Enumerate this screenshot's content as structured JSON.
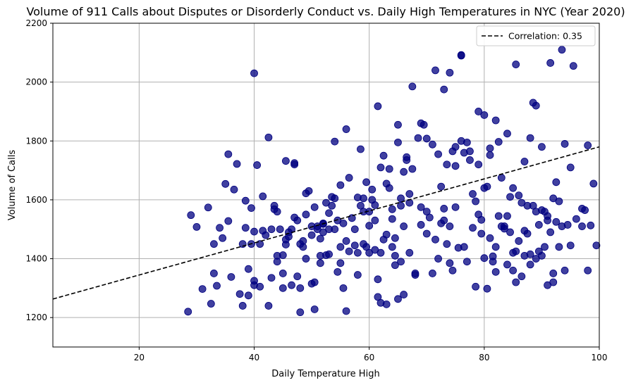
{
  "chart_data": {
    "type": "scatter",
    "title": "Volume of 911 Calls about Disputes or Disorderly Conduct vs. Daily High Temperatures in NYC (Year 2020)",
    "xlabel": "Daily Temperature High",
    "ylabel": "Volume of Calls",
    "xlim": [
      5,
      100
    ],
    "ylim": [
      1100,
      2200
    ],
    "xticks": [
      20,
      40,
      60,
      80,
      100
    ],
    "yticks": [
      1200,
      1400,
      1600,
      1800,
      2000,
      2200
    ],
    "xtick_labels": [
      "20",
      "40",
      "60",
      "80",
      "100"
    ],
    "ytick_labels": [
      "1200",
      "1400",
      "1600",
      "1800",
      "2000",
      "2200"
    ],
    "grid": true,
    "legend_position": "top-right",
    "point_color": "#000080",
    "trend": {
      "label": "Correlation: 0.35",
      "x": [
        5,
        100
      ],
      "y": [
        1263,
        1780
      ],
      "color": "#000000",
      "style": "dashed"
    },
    "points": [
      [
        28.5,
        1220
      ],
      [
        29,
        1548
      ],
      [
        30,
        1508
      ],
      [
        31,
        1297
      ],
      [
        32,
        1574
      ],
      [
        32.5,
        1247
      ],
      [
        33,
        1450
      ],
      [
        33,
        1350
      ],
      [
        33.5,
        1308
      ],
      [
        34,
        1505
      ],
      [
        34.5,
        1470
      ],
      [
        35,
        1654
      ],
      [
        35.5,
        1755
      ],
      [
        35.5,
        1528
      ],
      [
        36,
        1338
      ],
      [
        36.5,
        1635
      ],
      [
        37,
        1722
      ],
      [
        37.5,
        1280
      ],
      [
        38,
        1240
      ],
      [
        38,
        1450
      ],
      [
        38.5,
        1597
      ],
      [
        38.5,
        1505
      ],
      [
        39,
        1275
      ],
      [
        39,
        1365
      ],
      [
        39.5,
        1572
      ],
      [
        39.5,
        1450
      ],
      [
        40,
        1310
      ],
      [
        40,
        1492
      ],
      [
        40,
        1325
      ],
      [
        40.5,
        1718
      ],
      [
        40,
        2030
      ],
      [
        41,
        1450
      ],
      [
        41,
        1305
      ],
      [
        41.5,
        1612
      ],
      [
        41.5,
        1495
      ],
      [
        42,
        1480
      ],
      [
        42.5,
        1240
      ],
      [
        42.5,
        1812
      ],
      [
        43,
        1500
      ],
      [
        43,
        1335
      ],
      [
        43.5,
        1568
      ],
      [
        43.5,
        1580
      ],
      [
        44,
        1560
      ],
      [
        44,
        1410
      ],
      [
        44,
        1390
      ],
      [
        44.5,
        1500
      ],
      [
        45,
        1350
      ],
      [
        45,
        1300
      ],
      [
        45,
        1412
      ],
      [
        45.5,
        1448
      ],
      [
        45.5,
        1465
      ],
      [
        45.5,
        1732
      ],
      [
        46,
        1490
      ],
      [
        46,
        1475
      ],
      [
        46.5,
        1310
      ],
      [
        46.5,
        1500
      ],
      [
        47,
        1540
      ],
      [
        47,
        1720
      ],
      [
        47,
        1725
      ],
      [
        47.5,
        1340
      ],
      [
        47.5,
        1530
      ],
      [
        48,
        1300
      ],
      [
        48,
        1450
      ],
      [
        48,
        1218
      ],
      [
        48.5,
        1440
      ],
      [
        48.5,
        1460
      ],
      [
        49,
        1400
      ],
      [
        49,
        1550
      ],
      [
        49,
        1622
      ],
      [
        49.5,
        1630
      ],
      [
        50,
        1315
      ],
      [
        50,
        1510
      ],
      [
        50,
        1480
      ],
      [
        50.5,
        1320
      ],
      [
        50.5,
        1228
      ],
      [
        50.5,
        1575
      ],
      [
        51,
        1500
      ],
      [
        51,
        1510
      ],
      [
        51.5,
        1385
      ],
      [
        51.5,
        1410
      ],
      [
        51.5,
        1468
      ],
      [
        52,
        1490
      ],
      [
        52,
        1520
      ],
      [
        52,
        1518
      ],
      [
        52.5,
        1590
      ],
      [
        52.5,
        1412
      ],
      [
        53,
        1500
      ],
      [
        53,
        1555
      ],
      [
        53,
        1415
      ],
      [
        53.5,
        1580
      ],
      [
        53.5,
        1610
      ],
      [
        54,
        1605
      ],
      [
        54,
        1500
      ],
      [
        54,
        1798
      ],
      [
        54.5,
        1355
      ],
      [
        54.5,
        1530
      ],
      [
        55,
        1650
      ],
      [
        55,
        1440
      ],
      [
        55,
        1385
      ],
      [
        55.5,
        1300
      ],
      [
        55.5,
        1520
      ],
      [
        56,
        1222
      ],
      [
        56,
        1840
      ],
      [
        56,
        1460
      ],
      [
        56.5,
        1675
      ],
      [
        56.5,
        1425
      ],
      [
        57,
        1538
      ],
      [
        57.5,
        1445
      ],
      [
        57.5,
        1500
      ],
      [
        58,
        1608
      ],
      [
        58,
        1420
      ],
      [
        58,
        1345
      ],
      [
        58.5,
        1772
      ],
      [
        58.5,
        1580
      ],
      [
        59,
        1605
      ],
      [
        59,
        1450
      ],
      [
        59,
        1560
      ],
      [
        59.5,
        1660
      ],
      [
        59.5,
        1440
      ],
      [
        60,
        1512
      ],
      [
        60,
        1560
      ],
      [
        60,
        1420
      ],
      [
        60.5,
        1600
      ],
      [
        60.5,
        1635
      ],
      [
        61,
        1582
      ],
      [
        61,
        1430
      ],
      [
        61,
        1530
      ],
      [
        61.5,
        1918
      ],
      [
        61.5,
        1330
      ],
      [
        61.5,
        1270
      ],
      [
        62,
        1250
      ],
      [
        62,
        1710
      ],
      [
        62,
        1420
      ],
      [
        62.5,
        1465
      ],
      [
        62.5,
        1750
      ],
      [
        63,
        1655
      ],
      [
        63,
        1482
      ],
      [
        63,
        1245
      ],
      [
        63.5,
        1705
      ],
      [
        63.5,
        1640
      ],
      [
        64,
        1535
      ],
      [
        64,
        1568
      ],
      [
        64,
        1440
      ],
      [
        64.5,
        1410
      ],
      [
        64.5,
        1378
      ],
      [
        64.5,
        1470
      ],
      [
        65,
        1263
      ],
      [
        65,
        1855
      ],
      [
        65,
        1795
      ],
      [
        65.5,
        1605
      ],
      [
        65.5,
        1580
      ],
      [
        65.5,
        1390
      ],
      [
        66,
        1695
      ],
      [
        66,
        1510
      ],
      [
        66,
        1278
      ],
      [
        66.5,
        1745
      ],
      [
        66.5,
        1735
      ],
      [
        67,
        1590
      ],
      [
        67,
        1620
      ],
      [
        67,
        1420
      ],
      [
        67.5,
        1985
      ],
      [
        67.5,
        1705
      ],
      [
        68,
        1350
      ],
      [
        68,
        1345
      ],
      [
        68.5,
        1810
      ],
      [
        69,
        1515
      ],
      [
        69,
        1860
      ],
      [
        69,
        1575
      ],
      [
        69.5,
        1855
      ],
      [
        70,
        1485
      ],
      [
        70,
        1560
      ],
      [
        70,
        1808
      ],
      [
        70.5,
        1540
      ],
      [
        71,
        1788
      ],
      [
        71,
        1350
      ],
      [
        71.5,
        1465
      ],
      [
        71.5,
        2040
      ],
      [
        72,
        1400
      ],
      [
        72,
        1755
      ],
      [
        72.5,
        1520
      ],
      [
        72.5,
        1645
      ],
      [
        73,
        1530
      ],
      [
        73,
        1975
      ],
      [
        73,
        1570
      ],
      [
        73.5,
        1450
      ],
      [
        73.5,
        1720
      ],
      [
        74,
        1510
      ],
      [
        74,
        1385
      ],
      [
        74,
        2032
      ],
      [
        74.5,
        1360
      ],
      [
        74.5,
        1765
      ],
      [
        75,
        1575
      ],
      [
        75,
        1780
      ],
      [
        75,
        1715
      ],
      [
        75.5,
        1437
      ],
      [
        76,
        2092
      ],
      [
        76,
        2090
      ],
      [
        76,
        1800
      ],
      [
        76.5,
        1440
      ],
      [
        76.5,
        1760
      ],
      [
        77,
        1795
      ],
      [
        77,
        1390
      ],
      [
        77.5,
        1735
      ],
      [
        77.5,
        1765
      ],
      [
        78,
        1505
      ],
      [
        78,
        1620
      ],
      [
        78.5,
        1305
      ],
      [
        78.5,
        1595
      ],
      [
        79,
        1550
      ],
      [
        79,
        1720
      ],
      [
        79,
        1900
      ],
      [
        79.5,
        1532
      ],
      [
        79.5,
        1485
      ],
      [
        80,
        1402
      ],
      [
        80,
        1640
      ],
      [
        80,
        1888
      ],
      [
        80.5,
        1645
      ],
      [
        80.5,
        1298
      ],
      [
        81,
        1752
      ],
      [
        81,
        1470
      ],
      [
        81,
        1775
      ],
      [
        81.5,
        1408
      ],
      [
        81.5,
        1390
      ],
      [
        82,
        1355
      ],
      [
        82,
        1440
      ],
      [
        82,
        1870
      ],
      [
        82.5,
        1797
      ],
      [
        82.5,
        1545
      ],
      [
        83,
        1675
      ],
      [
        83,
        1510
      ],
      [
        83.5,
        1502
      ],
      [
        83.5,
        1510
      ],
      [
        84,
        1380
      ],
      [
        84,
        1545
      ],
      [
        84,
        1825
      ],
      [
        84.5,
        1610
      ],
      [
        84.5,
        1490
      ],
      [
        85,
        1360
      ],
      [
        85,
        1640
      ],
      [
        85,
        1420
      ],
      [
        85.5,
        1425
      ],
      [
        85.5,
        1320
      ],
      [
        85.5,
        2060
      ],
      [
        86,
        1615
      ],
      [
        86,
        1460
      ],
      [
        86.5,
        1590
      ],
      [
        86.5,
        1340
      ],
      [
        87,
        1495
      ],
      [
        87,
        1730
      ],
      [
        87,
        1410
      ],
      [
        87.5,
        1580
      ],
      [
        87.5,
        1485
      ],
      [
        88,
        1810
      ],
      [
        88,
        1415
      ],
      [
        88,
        1380
      ],
      [
        88.5,
        1930
      ],
      [
        88.5,
        1580
      ],
      [
        89,
        1920
      ],
      [
        89,
        1400
      ],
      [
        89,
        1560
      ],
      [
        89.5,
        1515
      ],
      [
        89.5,
        1425
      ],
      [
        90,
        1565
      ],
      [
        90,
        1780
      ],
      [
        90,
        1410
      ],
      [
        90.5,
        1440
      ],
      [
        90.5,
        1560
      ],
      [
        91,
        1310
      ],
      [
        91,
        1530
      ],
      [
        91,
        1545
      ],
      [
        91.5,
        1490
      ],
      [
        91.5,
        2065
      ],
      [
        92,
        1350
      ],
      [
        92,
        1605
      ],
      [
        92,
        1320
      ],
      [
        92.5,
        1525
      ],
      [
        92.5,
        1660
      ],
      [
        93,
        1440
      ],
      [
        93,
        1595
      ],
      [
        93.5,
        2110
      ],
      [
        93.5,
        1510
      ],
      [
        94,
        1360
      ],
      [
        94,
        1790
      ],
      [
        94.5,
        1515
      ],
      [
        95,
        1710
      ],
      [
        95,
        1445
      ],
      [
        95.5,
        2055
      ],
      [
        96,
        1535
      ],
      [
        97,
        1510
      ],
      [
        97,
        1570
      ],
      [
        97.5,
        1565
      ],
      [
        98,
        1360
      ],
      [
        98,
        1785
      ],
      [
        98.5,
        1513
      ],
      [
        99,
        1655
      ],
      [
        99.5,
        1445
      ]
    ]
  }
}
